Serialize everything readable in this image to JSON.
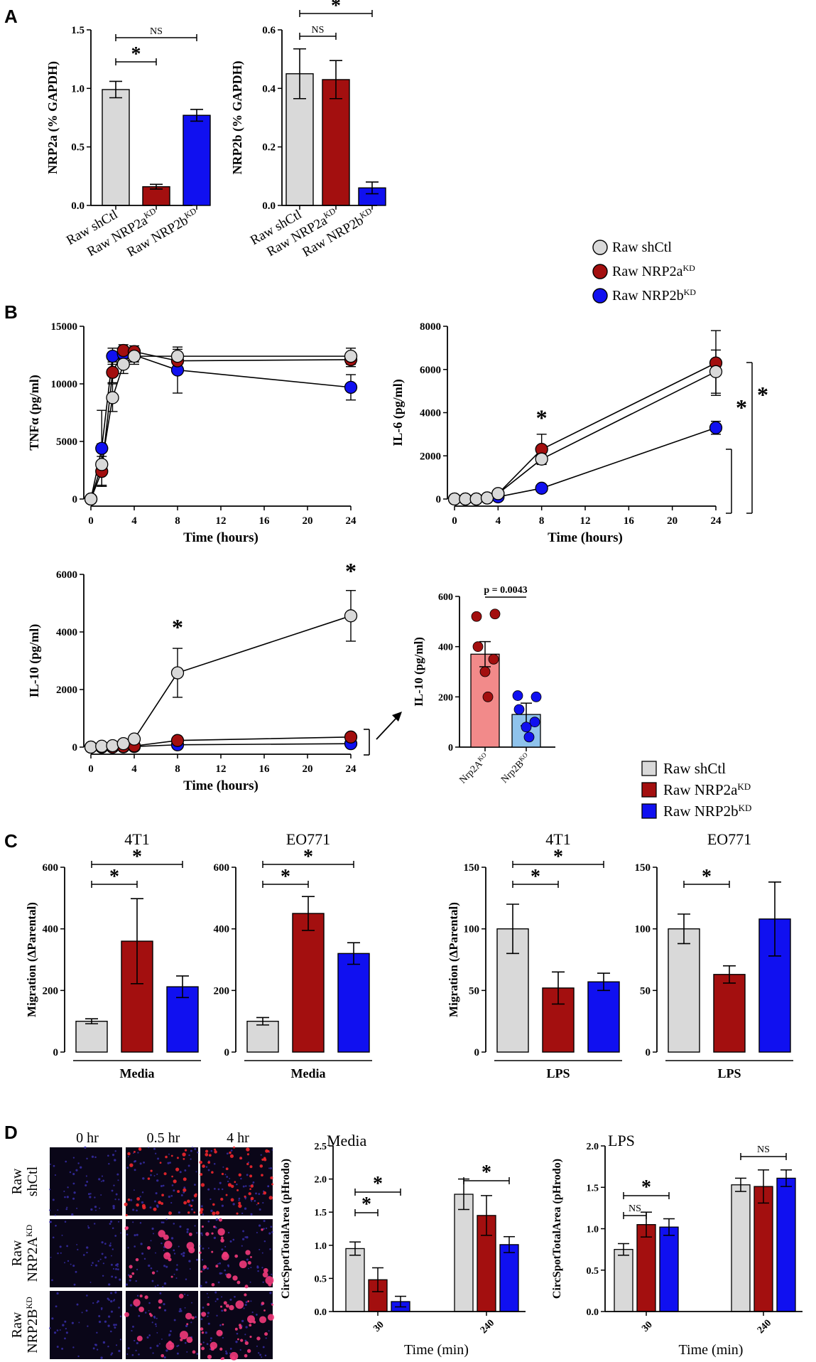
{
  "colors": {
    "shctl": "#d9d9d9",
    "nrp2a": "#a30f0f",
    "nrp2b": "#1010f0",
    "nrp2a_ko": "#f28a8a",
    "nrp2b_ko": "#8fc3ec"
  },
  "panel_labels": {
    "a": "A",
    "b": "B",
    "c": "C",
    "d": "D"
  },
  "legends": {
    "circles": [
      "Raw shCtl",
      "Raw NRP2a",
      "Raw NRP2b"
    ],
    "bars": [
      "Raw shCtl",
      "Raw NRP2a",
      "Raw NRP2b"
    ],
    "sup": "KD"
  },
  "ko_groups": [
    "Nrp2A",
    "Nrp2B"
  ],
  "ko_sup": "KO",
  "micro": {
    "col_labels": [
      "0 hr",
      "0.5 hr",
      "4 hr"
    ],
    "row_labels": [
      {
        "line1": "Raw",
        "line2": "shCtl",
        "sup": ""
      },
      {
        "line1": "Raw",
        "line2": "NRP2A",
        "sup": "KD"
      },
      {
        "line1": "Raw",
        "line2": "NRP2B",
        "sup": "KD"
      }
    ],
    "description": "fluorescence microscopy panel"
  },
  "chart_data": [
    {
      "id": "A1",
      "type": "bar",
      "ylabel": "NRP2a (% GAPDH)",
      "categories": [
        "Raw shCtl",
        "Raw NRP2a",
        "Raw NRP2b"
      ],
      "category_sup": [
        "",
        "KD",
        "KD"
      ],
      "values": [
        0.99,
        0.16,
        0.77
      ],
      "errors": [
        0.07,
        0.02,
        0.05
      ],
      "ylim": [
        0,
        1.5
      ],
      "yticks": [
        "0.0",
        "0.5",
        "1.0",
        "1.5"
      ],
      "significance": [
        {
          "from": 0,
          "to": 1,
          "label": "*",
          "level": 0
        },
        {
          "from": 0,
          "to": 2,
          "label": "NS",
          "level": 1
        }
      ]
    },
    {
      "id": "A2",
      "type": "bar",
      "ylabel": "NRP2b (% GAPDH)",
      "categories": [
        "Raw shCtl",
        "Raw NRP2a",
        "Raw NRP2b"
      ],
      "category_sup": [
        "",
        "KD",
        "KD"
      ],
      "values": [
        0.45,
        0.43,
        0.06
      ],
      "errors": [
        0.085,
        0.065,
        0.02
      ],
      "ylim": [
        0,
        0.6
      ],
      "yticks": [
        "0.0",
        "0.2",
        "0.4",
        "0.6"
      ],
      "significance": [
        {
          "from": 0,
          "to": 1,
          "label": "NS",
          "level": 0
        },
        {
          "from": 0,
          "to": 2,
          "label": "*",
          "level": 1
        }
      ]
    },
    {
      "id": "B1",
      "type": "line",
      "ylabel": "TNFα (pg/ml)",
      "xlabel": "Time (hours)",
      "x": [
        0,
        1,
        2,
        3,
        4,
        8,
        24
      ],
      "xlim": [
        0,
        24
      ],
      "xticks": [
        "0",
        "4",
        "8",
        "12",
        "16",
        "20",
        "24"
      ],
      "ylim": [
        0,
        15000
      ],
      "yticks": [
        "0",
        "5000",
        "10000",
        "15000"
      ],
      "series": [
        {
          "name": "Raw shCtl",
          "values": [
            0,
            3000,
            8800,
            11700,
            12400,
            12400,
            12400
          ],
          "errors": [
            0,
            1800,
            1200,
            800,
            700,
            600,
            700
          ]
        },
        {
          "name": "Raw NRP2a",
          "values": [
            0,
            2400,
            11000,
            12900,
            12800,
            12000,
            12100
          ],
          "errors": [
            0,
            1300,
            900,
            500,
            500,
            500,
            600
          ]
        },
        {
          "name": "Raw NRP2b",
          "values": [
            0,
            4400,
            12400,
            12600,
            12500,
            11200,
            9700
          ],
          "errors": [
            0,
            3300,
            700,
            400,
            600,
            2000,
            1100
          ]
        }
      ],
      "annotations": []
    },
    {
      "id": "B2",
      "type": "line",
      "ylabel": "IL-6 (pg/ml)",
      "xlabel": "Time (hours)",
      "x": [
        0,
        1,
        2,
        3,
        4,
        8,
        24
      ],
      "xlim": [
        0,
        24
      ],
      "xticks": [
        "0",
        "4",
        "8",
        "12",
        "16",
        "20",
        "24"
      ],
      "ylim": [
        0,
        8000
      ],
      "yticks": [
        "0",
        "2000",
        "4000",
        "6000",
        "8000"
      ],
      "series": [
        {
          "name": "Raw shCtl",
          "values": [
            0,
            0,
            0,
            50,
            250,
            1850,
            5900
          ],
          "errors": [
            0,
            0,
            0,
            0,
            0,
            200,
            1000
          ]
        },
        {
          "name": "Raw NRP2a",
          "values": [
            0,
            0,
            0,
            50,
            250,
            2300,
            6300
          ],
          "errors": [
            0,
            0,
            0,
            0,
            0,
            700,
            1500
          ]
        },
        {
          "name": "Raw NRP2b",
          "values": [
            0,
            0,
            0,
            50,
            100,
            500,
            3300
          ],
          "errors": [
            0,
            0,
            0,
            0,
            0,
            100,
            300
          ]
        }
      ],
      "annotations": [
        {
          "x": 8,
          "y": 3400,
          "label": "*"
        }
      ],
      "brackets": [
        {
          "label": "*"
        },
        {
          "label": "*"
        }
      ]
    },
    {
      "id": "B3",
      "type": "line",
      "ylabel": "IL-10 (pg/ml)",
      "xlabel": "Time (hours)",
      "x": [
        0,
        1,
        2,
        3,
        4,
        8,
        24
      ],
      "xlim": [
        0,
        24
      ],
      "xticks": [
        "0",
        "4",
        "8",
        "12",
        "16",
        "20",
        "24"
      ],
      "ylim": [
        0,
        6000
      ],
      "yticks": [
        "0",
        "2000",
        "4000",
        "6000"
      ],
      "series": [
        {
          "name": "Raw shCtl",
          "values": [
            0,
            30,
            50,
            120,
            280,
            2580,
            4560
          ],
          "errors": [
            0,
            0,
            0,
            0,
            0,
            850,
            880
          ]
        },
        {
          "name": "Raw NRP2a",
          "values": [
            0,
            0,
            0,
            20,
            40,
            230,
            350
          ],
          "errors": [
            0,
            0,
            0,
            0,
            0,
            0,
            0
          ]
        },
        {
          "name": "Raw NRP2b",
          "values": [
            0,
            0,
            0,
            10,
            20,
            80,
            120
          ],
          "errors": [
            0,
            0,
            0,
            0,
            0,
            0,
            0
          ]
        }
      ],
      "annotations": [
        {
          "x": 8,
          "y": 3900,
          "label": "*"
        },
        {
          "x": 24,
          "y": 5850,
          "label": "*"
        }
      ]
    },
    {
      "id": "B4",
      "type": "bar",
      "ylabel": "IL-10 (pg/ml)",
      "categories": [
        "Nrp2A",
        "Nrp2B"
      ],
      "values": [
        370,
        130
      ],
      "errors": [
        50,
        45
      ],
      "points": [
        [
          520,
          530,
          400,
          350,
          300,
          200
        ],
        [
          205,
          200,
          150,
          100,
          80,
          40
        ]
      ],
      "ylim": [
        0,
        600
      ],
      "yticks": [
        "0",
        "200",
        "400",
        "600"
      ],
      "pvalue": "p = 0.0043"
    },
    {
      "id": "C1",
      "type": "bar",
      "title": "4T1",
      "ylabel": "Migration (ΔParental)",
      "xlabel": "Media",
      "categories": [
        "Raw shCtl",
        "Raw NRP2a",
        "Raw NRP2b"
      ],
      "values": [
        100,
        360,
        212
      ],
      "errors": [
        8,
        138,
        35
      ],
      "ylim": [
        0,
        600
      ],
      "yticks": [
        "0",
        "200",
        "400",
        "600"
      ],
      "significance": [
        {
          "from": 0,
          "to": 1,
          "label": "*",
          "level": 0
        },
        {
          "from": 0,
          "to": 2,
          "label": "*",
          "level": 1
        }
      ]
    },
    {
      "id": "C2",
      "type": "bar",
      "title": "EO771",
      "ylabel": "",
      "xlabel": "Media",
      "categories": [
        "Raw shCtl",
        "Raw NRP2a",
        "Raw NRP2b"
      ],
      "values": [
        100,
        450,
        320
      ],
      "errors": [
        12,
        55,
        35
      ],
      "ylim": [
        0,
        600
      ],
      "yticks": [
        "0",
        "200",
        "400",
        "600"
      ],
      "significance": [
        {
          "from": 0,
          "to": 1,
          "label": "*",
          "level": 0
        },
        {
          "from": 0,
          "to": 2,
          "label": "*",
          "level": 1
        }
      ]
    },
    {
      "id": "C3",
      "type": "bar",
      "title": "4T1",
      "ylabel": "Migration (ΔParental)",
      "xlabel": "LPS",
      "categories": [
        "Raw shCtl",
        "Raw NRP2a",
        "Raw NRP2b"
      ],
      "values": [
        100,
        52,
        57
      ],
      "errors": [
        20,
        13,
        7
      ],
      "ylim": [
        0,
        150
      ],
      "yticks": [
        "0",
        "50",
        "100",
        "150"
      ],
      "significance": [
        {
          "from": 0,
          "to": 1,
          "label": "*",
          "level": 0
        },
        {
          "from": 0,
          "to": 2,
          "label": "*",
          "level": 1
        }
      ]
    },
    {
      "id": "C4",
      "type": "bar",
      "title": "EO771",
      "ylabel": "",
      "xlabel": "LPS",
      "categories": [
        "Raw shCtl",
        "Raw NRP2a",
        "Raw NRP2b"
      ],
      "values": [
        100,
        63,
        108
      ],
      "errors": [
        12,
        7,
        30
      ],
      "ylim": [
        0,
        150
      ],
      "yticks": [
        "0",
        "50",
        "100",
        "150"
      ],
      "significance": [
        {
          "from": 0,
          "to": 1,
          "label": "*",
          "level": 0
        }
      ]
    },
    {
      "id": "D1",
      "type": "bar",
      "title": "Media",
      "ylabel": "CircSpotTotalArea (pHrodo)",
      "xlabel": "Time (min)",
      "groups": [
        "30",
        "240"
      ],
      "series": [
        {
          "name": "Raw shCtl",
          "values": [
            0.95,
            1.77
          ],
          "errors": [
            0.1,
            0.23
          ]
        },
        {
          "name": "Raw NRP2a",
          "values": [
            0.48,
            1.45
          ],
          "errors": [
            0.18,
            0.3
          ]
        },
        {
          "name": "Raw NRP2b",
          "values": [
            0.15,
            1.01
          ],
          "errors": [
            0.08,
            0.12
          ]
        }
      ],
      "ylim": [
        0,
        2.5
      ],
      "yticks": [
        "0.0",
        "0.5",
        "1.0",
        "1.5",
        "2.0",
        "2.5"
      ],
      "significance": [
        {
          "group": 0,
          "from": 0,
          "to": 1,
          "label": "*",
          "level": 0
        },
        {
          "group": 0,
          "from": 0,
          "to": 2,
          "label": "*",
          "level": 1
        },
        {
          "group": 1,
          "from": 0,
          "to": 2,
          "label": "*",
          "level": 1
        }
      ]
    },
    {
      "id": "D2",
      "type": "bar",
      "title": "LPS",
      "ylabel": "CircSpotTotalArea (pHrodo)",
      "xlabel": "Time (min)",
      "groups": [
        "30",
        "240"
      ],
      "series": [
        {
          "name": "Raw shCtl",
          "values": [
            0.75,
            1.53
          ],
          "errors": [
            0.07,
            0.08
          ]
        },
        {
          "name": "Raw NRP2a",
          "values": [
            1.05,
            1.51
          ],
          "errors": [
            0.15,
            0.2
          ]
        },
        {
          "name": "Raw NRP2b",
          "values": [
            1.02,
            1.61
          ],
          "errors": [
            0.1,
            0.1
          ]
        }
      ],
      "ylim": [
        0,
        2.0
      ],
      "yticks": [
        "0.0",
        "0.5",
        "1.0",
        "1.5",
        "2.0"
      ],
      "significance": [
        {
          "group": 0,
          "from": 0,
          "to": 1,
          "label": "NS",
          "level": 0
        },
        {
          "group": 0,
          "from": 0,
          "to": 2,
          "label": "*",
          "level": 1
        },
        {
          "group": 1,
          "from": 0,
          "to": 2,
          "label": "NS",
          "level": 1
        }
      ]
    }
  ]
}
